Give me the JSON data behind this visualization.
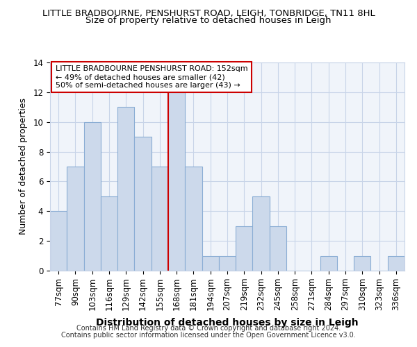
{
  "title1": "LITTLE BRADBOURNE, PENSHURST ROAD, LEIGH, TONBRIDGE, TN11 8HL",
  "title2": "Size of property relative to detached houses in Leigh",
  "xlabel": "Distribution of detached houses by size in Leigh",
  "ylabel": "Number of detached properties",
  "categories": [
    "77sqm",
    "90sqm",
    "103sqm",
    "116sqm",
    "129sqm",
    "142sqm",
    "155sqm",
    "168sqm",
    "181sqm",
    "194sqm",
    "207sqm",
    "219sqm",
    "232sqm",
    "245sqm",
    "258sqm",
    "271sqm",
    "284sqm",
    "297sqm",
    "310sqm",
    "323sqm",
    "336sqm"
  ],
  "values": [
    4,
    7,
    10,
    5,
    11,
    9,
    7,
    12,
    7,
    1,
    1,
    3,
    5,
    3,
    0,
    0,
    1,
    0,
    1,
    0,
    1
  ],
  "bar_color": "#ccd9eb",
  "bar_edge_color": "#8aadd4",
  "vline_color": "#cc0000",
  "vline_position": 6.5,
  "annotation_title": "LITTLE BRADBOURNE PENSHURST ROAD: 152sqm",
  "annotation_line1": "← 49% of detached houses are smaller (42)",
  "annotation_line2": "50% of semi-detached houses are larger (43) →",
  "annotation_box_color": "#ffffff",
  "annotation_border_color": "#cc0000",
  "footer1": "Contains HM Land Registry data © Crown copyright and database right 2024.",
  "footer2": "Contains public sector information licensed under the Open Government Licence v3.0.",
  "ylim": [
    0,
    14
  ],
  "yticks": [
    0,
    2,
    4,
    6,
    8,
    10,
    12,
    14
  ],
  "bg_color": "#ffffff",
  "plot_bg_color": "#f0f4fa",
  "grid_color": "#c8d4e8",
  "title1_fontsize": 9.5,
  "title2_fontsize": 9.5,
  "xlabel_fontsize": 10,
  "ylabel_fontsize": 9,
  "tick_fontsize": 8.5,
  "annotation_fontsize": 8,
  "footer_fontsize": 7
}
